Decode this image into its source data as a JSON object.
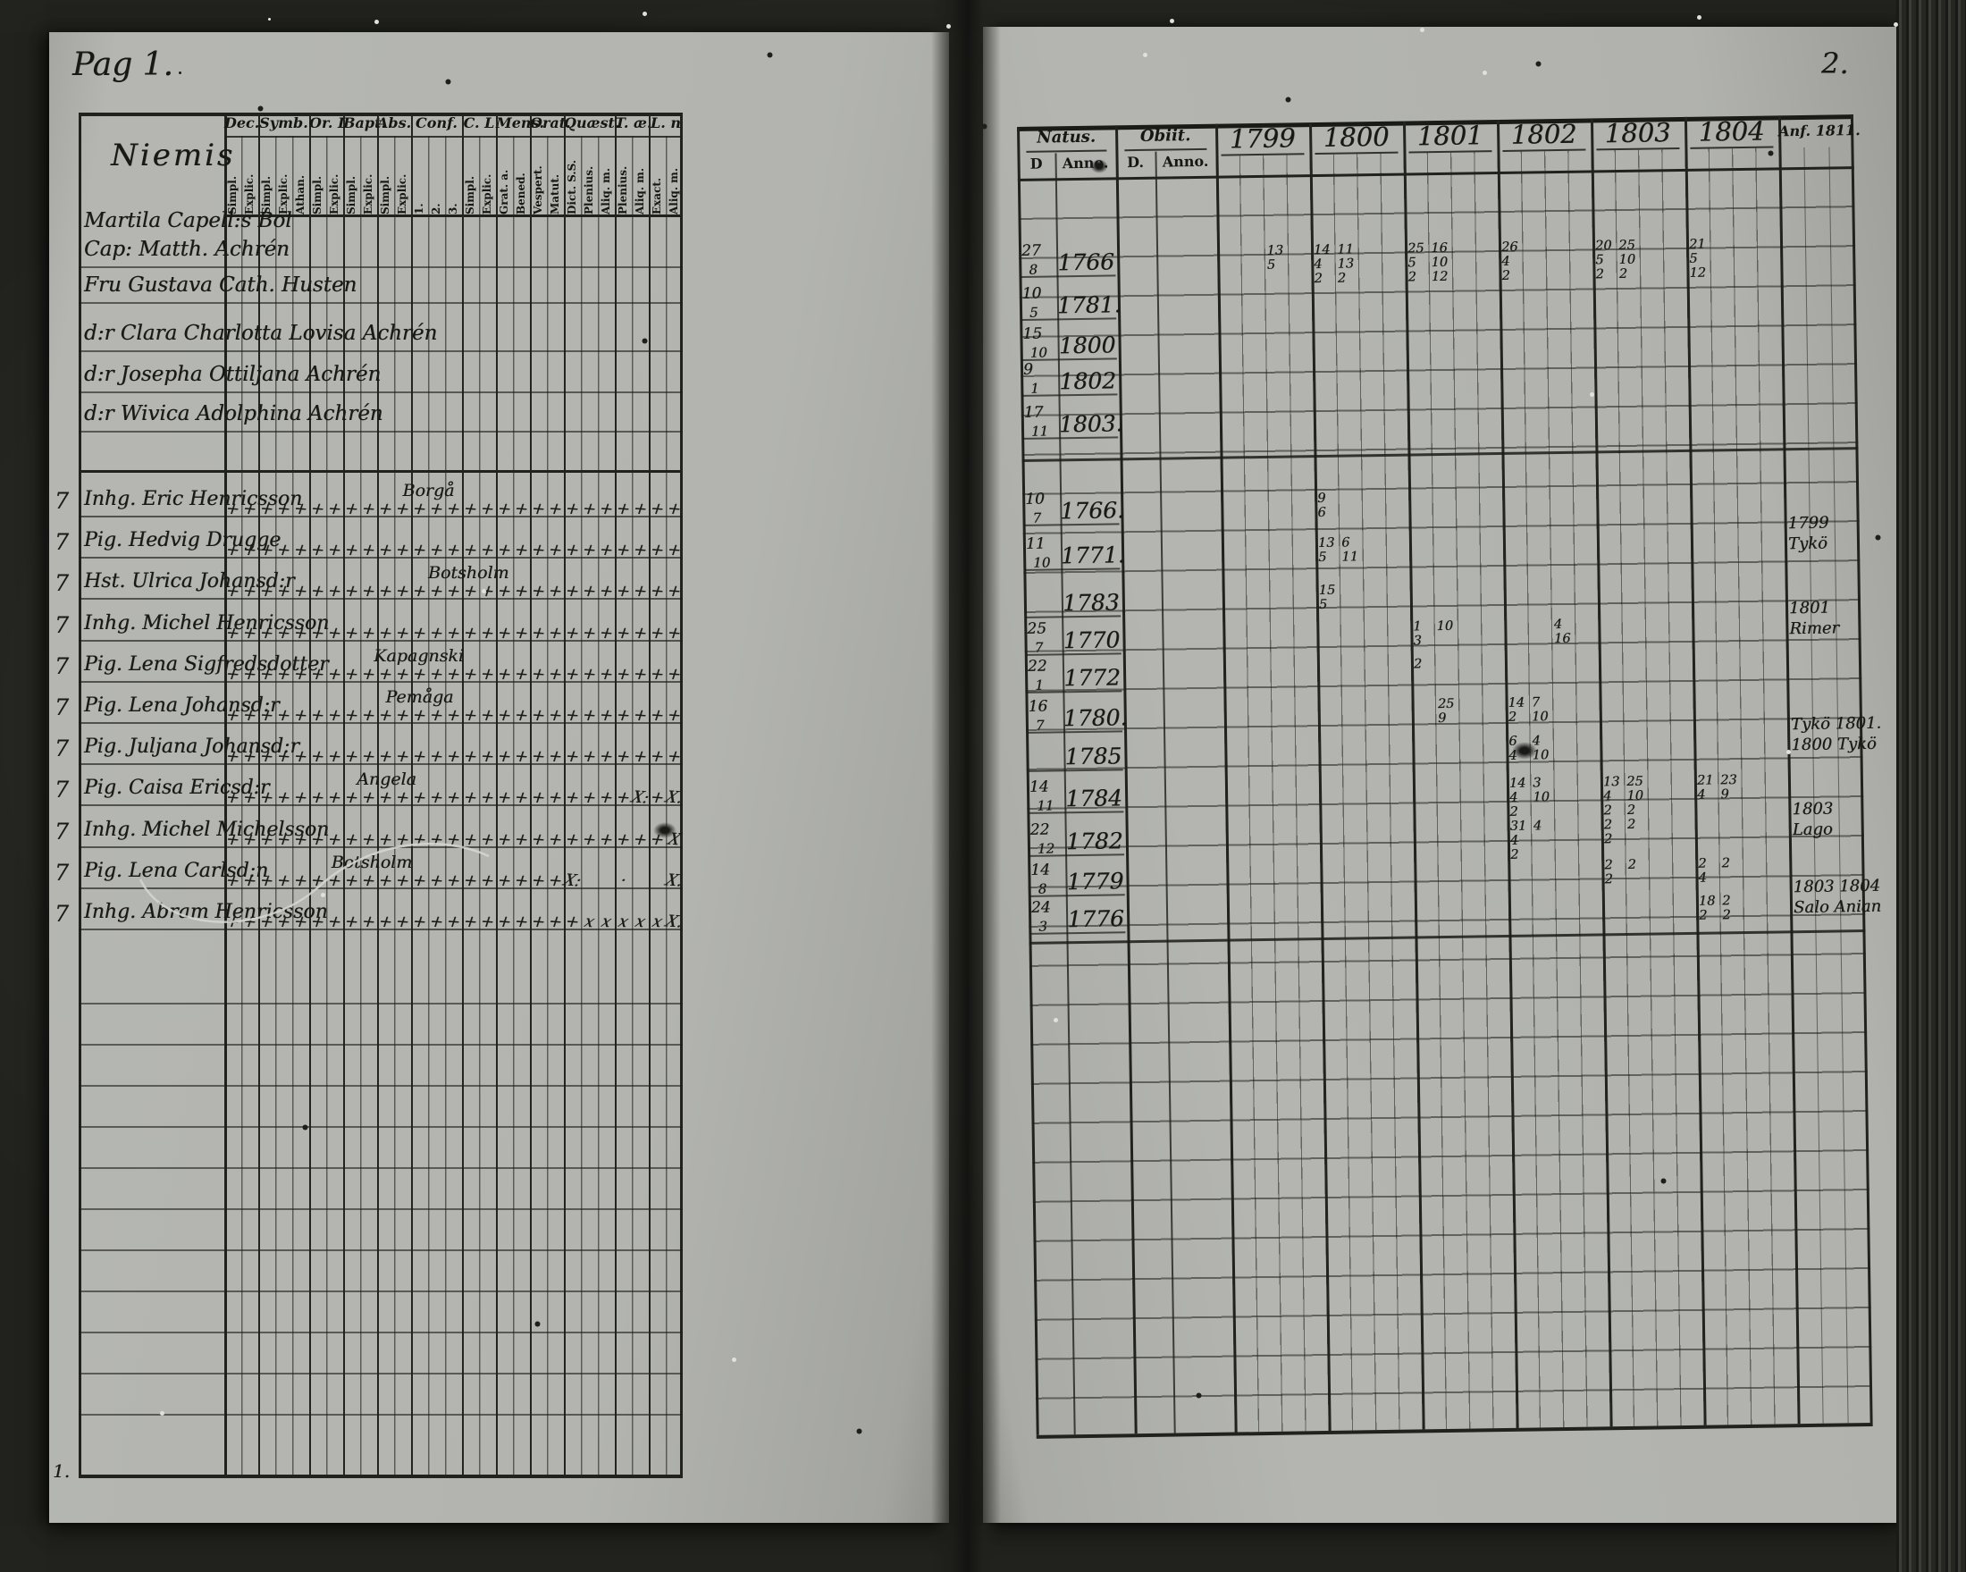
{
  "document": {
    "left_page_number": "Pag 1.",
    "right_page_number": "2.",
    "bottom_left_mark": "1.",
    "names_header": "Niemis"
  },
  "left_table": {
    "groups": [
      {
        "label": "Dec.",
        "subs": [
          "Simpl.",
          "Explic."
        ]
      },
      {
        "label": "Symb.",
        "subs": [
          "Simpl.",
          "Explic.",
          "Athan."
        ]
      },
      {
        "label": "Or. L",
        "subs": [
          "Simpl.",
          "Explic."
        ]
      },
      {
        "label": "Bapt.",
        "subs": [
          "Simpl.",
          "Explic."
        ]
      },
      {
        "label": "Abs.",
        "subs": [
          "Simpl.",
          "Explic."
        ]
      },
      {
        "label": "Conf.",
        "subs": [
          "1.",
          "2.",
          "3."
        ]
      },
      {
        "label": "C. L",
        "subs": [
          "Simpl.",
          "Explic."
        ]
      },
      {
        "label": "Mens.",
        "subs": [
          "Grat. a.",
          "Bened."
        ]
      },
      {
        "label": "Orat.",
        "subs": [
          "Vespert.",
          "Matut."
        ]
      },
      {
        "label": "Quæst.",
        "subs": [
          "Dict. S.S.",
          "Plenius.",
          "Aliq. m."
        ]
      },
      {
        "label": "T. æ.",
        "subs": [
          "Plenius.",
          "Aliq. m."
        ]
      },
      {
        "label": "L. n",
        "subs": [
          "Exact.",
          "Aliq. m."
        ]
      }
    ],
    "household_rows": [
      {
        "lines": [
          "Martila Capell:s Bol",
          "Cap: Matth. Achrén"
        ]
      },
      {
        "lines": [
          "Fru Gustava Cath. Husten"
        ]
      },
      {
        "lines": [
          "d:r Clara Charlotta Lovisa Achrén"
        ]
      },
      {
        "lines": [
          "d:r Josepha Ottiljana Achrén"
        ]
      },
      {
        "lines": [
          "d:r Wivica Adolphina Achrén"
        ]
      }
    ],
    "member_rows": [
      {
        "margin": "7",
        "name": "Inhg. Eric Henricsson",
        "annotation": "Borgå",
        "annotation_col": 10.5
      },
      {
        "margin": "7",
        "name": "Pig. Hedvig Drugge"
      },
      {
        "margin": "7",
        "name": "Hst. Ulrica Johansd:r",
        "annotation": "Botsholm",
        "annotation_col": 12
      },
      {
        "margin": "7",
        "name": "Inhg. Michel Henricsson"
      },
      {
        "margin": "7",
        "name": "Pig. Lena Sigfredsdotter",
        "annotation": "Kapagnski",
        "annotation_col": 8.8
      },
      {
        "margin": "7",
        "name": "Pig. Lena Johansd:r",
        "annotation": "Pemåga",
        "annotation_col": 9.5
      },
      {
        "margin": "7",
        "name": "Pig. Juljana Johansd:r"
      },
      {
        "margin": "7",
        "name": "Pig. Caisa Ericsd:r",
        "annotation": "Angela",
        "annotation_col": 7.8,
        "overrides": {
          "24": "X:",
          "26": "X."
        }
      },
      {
        "margin": "7",
        "name": "Inhg. Michel Michelsson",
        "overrides": {
          "26": "X"
        }
      },
      {
        "margin": "7",
        "name": "Pig. Lena Carlsd:n",
        "annotation": "Botsholm",
        "annotation_col": 6.3,
        "overrides": {
          "20": "X:",
          "21": "",
          "22": "",
          "23": "·",
          "24": "",
          "25": "",
          "26": "X."
        }
      },
      {
        "margin": "7",
        "name": "Inhg. Abram Henricsson",
        "overrides": {
          "21": "x",
          "22": "x",
          "23": "x",
          "24": "x",
          "25": "x",
          "26": "X."
        }
      }
    ],
    "default_mark": "+"
  },
  "right_table": {
    "natus_label": "Natus.",
    "natus_subs": [
      "D",
      "Anno."
    ],
    "obiit_label": "Obiit.",
    "obiit_subs": [
      "D.",
      "Anno."
    ],
    "years": [
      "1799",
      "1800",
      "1801",
      "1802",
      "1803",
      "1804"
    ],
    "last_col_label": "Anf. 1811.",
    "natus_block1": [
      {
        "d": "27",
        "m": "8",
        "anno": "1766"
      },
      {
        "d": "10",
        "m": "5",
        "anno": "1781."
      },
      {
        "d": "15",
        "m": "10",
        "anno": "1800"
      },
      {
        "d": "9",
        "m": "1",
        "anno": "1802"
      },
      {
        "d": "17",
        "m": "11",
        "anno": "1803."
      }
    ],
    "natus_block2": [
      {
        "d": "10",
        "m": "7",
        "anno": "1766."
      },
      {
        "d": "11",
        "m": "10",
        "anno": "1771."
      },
      {
        "d": "",
        "m": "",
        "anno": "1783"
      },
      {
        "d": "25",
        "m": "7",
        "anno": "1770"
      },
      {
        "d": "22",
        "m": "1",
        "anno": "1772"
      },
      {
        "d": "16",
        "m": "7",
        "anno": "1780."
      },
      {
        "d": "",
        "m": "",
        "anno": "1785"
      },
      {
        "d": "14",
        "m": "11",
        "anno": "1784"
      },
      {
        "d": "22",
        "m": "12",
        "anno": "1782"
      },
      {
        "d": "14",
        "m": "8",
        "anno": "1779"
      },
      {
        "d": "24",
        "m": "3",
        "anno": "1776"
      }
    ],
    "year_entries": [
      {
        "block": 1,
        "row": 0,
        "year": 0,
        "sub": 2,
        "lines": [
          "13",
          "5"
        ]
      },
      {
        "block": 1,
        "row": 0,
        "year": 1,
        "sub": 0,
        "lines": [
          "14",
          "4",
          "2"
        ]
      },
      {
        "block": 1,
        "row": 0,
        "year": 1,
        "sub": 1,
        "lines": [
          "11",
          "13",
          "2"
        ]
      },
      {
        "block": 1,
        "row": 0,
        "year": 2,
        "sub": 0,
        "lines": [
          "25",
          "5",
          "2"
        ]
      },
      {
        "block": 1,
        "row": 0,
        "year": 2,
        "sub": 1,
        "lines": [
          "16",
          "10",
          "12"
        ]
      },
      {
        "block": 1,
        "row": 0,
        "year": 3,
        "sub": 0,
        "lines": [
          "26",
          "4",
          "2"
        ]
      },
      {
        "block": 1,
        "row": 0,
        "year": 4,
        "sub": 0,
        "lines": [
          "20",
          "5",
          "2"
        ]
      },
      {
        "block": 1,
        "row": 0,
        "year": 4,
        "sub": 1,
        "lines": [
          "25",
          "10",
          "2"
        ]
      },
      {
        "block": 1,
        "row": 0,
        "year": 5,
        "sub": 0,
        "lines": [
          "21",
          "5",
          "12"
        ]
      },
      {
        "block": 2,
        "row": 0,
        "year": 1,
        "sub": 0,
        "lines": [
          "9",
          "6"
        ]
      },
      {
        "block": 2,
        "row": 1,
        "year": 1,
        "sub": 0,
        "lines": [
          "13",
          "5"
        ]
      },
      {
        "block": 2,
        "row": 1,
        "year": 1,
        "sub": 1,
        "lines": [
          "6",
          "11"
        ]
      },
      {
        "block": 2,
        "row": 2,
        "year": 1,
        "sub": 0,
        "lines": [
          "15",
          "5"
        ]
      },
      {
        "block": 2,
        "row": 3,
        "year": 2,
        "sub": 0,
        "lines": [
          "1",
          "3"
        ]
      },
      {
        "block": 2,
        "row": 3,
        "year": 2,
        "sub": 1,
        "lines": [
          "10"
        ]
      },
      {
        "block": 2,
        "row": 3,
        "year": 3,
        "sub": 2,
        "lines": [
          "4",
          "16"
        ]
      },
      {
        "block": 2,
        "row": 4,
        "year": 2,
        "sub": 0,
        "lines": [
          "2"
        ]
      },
      {
        "block": 2,
        "row": 5,
        "year": 2,
        "sub": 1,
        "lines": [
          "25",
          "9"
        ]
      },
      {
        "block": 2,
        "row": 5,
        "year": 3,
        "sub": 0,
        "lines": [
          "14",
          "2"
        ]
      },
      {
        "block": 2,
        "row": 5,
        "year": 3,
        "sub": 1,
        "lines": [
          "7",
          "10"
        ]
      },
      {
        "block": 2,
        "row": 6,
        "year": 3,
        "sub": 0,
        "lines": [
          "6",
          "4"
        ]
      },
      {
        "block": 2,
        "row": 6,
        "year": 3,
        "sub": 1,
        "lines": [
          "4",
          "10"
        ]
      },
      {
        "block": 2,
        "row": 7,
        "year": 3,
        "sub": 0,
        "lines": [
          "14",
          "4",
          "2"
        ]
      },
      {
        "block": 2,
        "row": 7,
        "year": 3,
        "sub": 1,
        "lines": [
          "3",
          "10"
        ]
      },
      {
        "block": 2,
        "row": 7,
        "year": 4,
        "sub": 0,
        "lines": [
          "13",
          "4",
          "2"
        ]
      },
      {
        "block": 2,
        "row": 7,
        "year": 4,
        "sub": 1,
        "lines": [
          "25",
          "10",
          "2"
        ]
      },
      {
        "block": 2,
        "row": 7,
        "year": 5,
        "sub": 0,
        "lines": [
          "21",
          "4"
        ]
      },
      {
        "block": 2,
        "row": 7,
        "year": 5,
        "sub": 1,
        "lines": [
          "23",
          "9"
        ]
      },
      {
        "block": 2,
        "row": 8,
        "year": 3,
        "sub": 0,
        "lines": [
          "31",
          "4",
          "2"
        ]
      },
      {
        "block": 2,
        "row": 8,
        "year": 3,
        "sub": 1,
        "lines": [
          "4"
        ]
      },
      {
        "block": 2,
        "row": 8,
        "year": 4,
        "sub": 0,
        "lines": [
          "2",
          "2"
        ]
      },
      {
        "block": 2,
        "row": 8,
        "year": 4,
        "sub": 1,
        "lines": [
          "2"
        ]
      },
      {
        "block": 2,
        "row": 9,
        "year": 4,
        "sub": 0,
        "lines": [
          "2",
          "2"
        ]
      },
      {
        "block": 2,
        "row": 9,
        "year": 4,
        "sub": 1,
        "lines": [
          "2"
        ]
      },
      {
        "block": 2,
        "row": 9,
        "year": 5,
        "sub": 0,
        "lines": [
          "2",
          "4"
        ]
      },
      {
        "block": 2,
        "row": 9,
        "year": 5,
        "sub": 1,
        "lines": [
          "2"
        ]
      },
      {
        "block": 2,
        "row": 10,
        "year": 5,
        "sub": 0,
        "lines": [
          "18",
          "2"
        ]
      },
      {
        "block": 2,
        "row": 10,
        "year": 5,
        "sub": 1,
        "lines": [
          "2",
          "2"
        ]
      }
    ],
    "margin_notes": [
      {
        "near_row": 1,
        "lines": [
          "1799",
          "Tykö"
        ]
      },
      {
        "near_row": 3,
        "lines": [
          "1801",
          "Rimer"
        ]
      },
      {
        "near_row": 6,
        "lines": [
          "Tykö 1801.",
          "1800 Tykö"
        ]
      },
      {
        "near_row": 8,
        "lines": [
          "1803",
          "Lago"
        ]
      },
      {
        "near_row": 10,
        "lines": [
          "1803 1804",
          "Salo Anian"
        ]
      }
    ]
  }
}
